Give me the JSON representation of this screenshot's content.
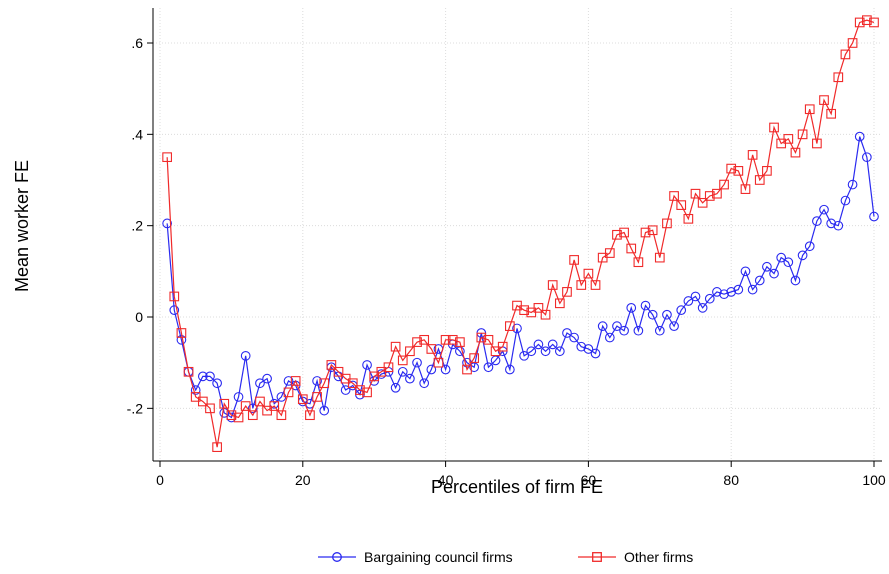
{
  "chart_data": {
    "type": "line",
    "xlabel": "Percentiles of firm FE",
    "ylabel": "Mean worker FE",
    "xlim": [
      0,
      100
    ],
    "ylim": [
      -0.3,
      0.66
    ],
    "xticks": [
      0,
      20,
      40,
      60,
      80,
      100
    ],
    "xtick_labels": [
      "0",
      "20",
      "40",
      "60",
      "80",
      "100"
    ],
    "yticks": [
      -0.2,
      0,
      0.2,
      0.4,
      0.6
    ],
    "ytick_labels": [
      "-.2",
      "0",
      ".2",
      ".4",
      ".6"
    ],
    "grid": true,
    "legend_position": "bottom",
    "x": [
      1,
      2,
      3,
      4,
      5,
      6,
      7,
      8,
      9,
      10,
      11,
      12,
      13,
      14,
      15,
      16,
      17,
      18,
      19,
      20,
      21,
      22,
      23,
      24,
      25,
      26,
      27,
      28,
      29,
      30,
      31,
      32,
      33,
      34,
      35,
      36,
      37,
      38,
      39,
      40,
      41,
      42,
      43,
      44,
      45,
      46,
      47,
      48,
      49,
      50,
      51,
      52,
      53,
      54,
      55,
      56,
      57,
      58,
      59,
      60,
      61,
      62,
      63,
      64,
      65,
      66,
      67,
      68,
      69,
      70,
      71,
      72,
      73,
      74,
      75,
      76,
      77,
      78,
      79,
      80,
      81,
      82,
      83,
      84,
      85,
      86,
      87,
      88,
      89,
      90,
      91,
      92,
      93,
      94,
      95,
      96,
      97,
      98,
      99,
      100
    ],
    "series": [
      {
        "name": "Bargaining council firms",
        "color": "#2a2af0",
        "marker": "circle",
        "values": [
          0.205,
          0.015,
          -0.05,
          -0.12,
          -0.16,
          -0.13,
          -0.13,
          -0.145,
          -0.21,
          -0.22,
          -0.175,
          -0.085,
          -0.2,
          -0.145,
          -0.135,
          -0.19,
          -0.175,
          -0.14,
          -0.15,
          -0.185,
          -0.19,
          -0.14,
          -0.205,
          -0.11,
          -0.13,
          -0.16,
          -0.15,
          -0.17,
          -0.105,
          -0.14,
          -0.125,
          -0.12,
          -0.155,
          -0.12,
          -0.135,
          -0.1,
          -0.145,
          -0.115,
          -0.07,
          -0.115,
          -0.06,
          -0.075,
          -0.1,
          -0.11,
          -0.035,
          -0.11,
          -0.095,
          -0.075,
          -0.115,
          -0.025,
          -0.085,
          -0.075,
          -0.06,
          -0.075,
          -0.06,
          -0.075,
          -0.035,
          -0.045,
          -0.065,
          -0.07,
          -0.08,
          -0.02,
          -0.045,
          -0.02,
          -0.03,
          0.02,
          -0.03,
          0.025,
          0.005,
          -0.03,
          0.005,
          -0.02,
          0.015,
          0.035,
          0.045,
          0.02,
          0.04,
          0.055,
          0.05,
          0.055,
          0.06,
          0.1,
          0.06,
          0.08,
          0.11,
          0.095,
          0.13,
          0.12,
          0.08,
          0.135,
          0.155,
          0.21,
          0.235,
          0.205,
          0.2,
          0.255,
          0.29,
          0.395,
          0.35,
          0.22
        ]
      },
      {
        "name": "Other firms",
        "color": "#f02a2a",
        "marker": "square",
        "values": [
          0.35,
          0.045,
          -0.035,
          -0.12,
          -0.175,
          -0.185,
          -0.2,
          -0.285,
          -0.19,
          -0.215,
          -0.22,
          -0.195,
          -0.215,
          -0.185,
          -0.205,
          -0.195,
          -0.215,
          -0.165,
          -0.14,
          -0.18,
          -0.215,
          -0.175,
          -0.145,
          -0.105,
          -0.12,
          -0.135,
          -0.145,
          -0.16,
          -0.165,
          -0.13,
          -0.12,
          -0.11,
          -0.065,
          -0.095,
          -0.075,
          -0.055,
          -0.05,
          -0.07,
          -0.1,
          -0.05,
          -0.05,
          -0.055,
          -0.115,
          -0.09,
          -0.045,
          -0.05,
          -0.075,
          -0.065,
          -0.02,
          0.025,
          0.015,
          0.01,
          0.02,
          0.005,
          0.07,
          0.03,
          0.055,
          0.125,
          0.07,
          0.095,
          0.07,
          0.13,
          0.14,
          0.18,
          0.185,
          0.15,
          0.12,
          0.185,
          0.19,
          0.13,
          0.205,
          0.265,
          0.245,
          0.215,
          0.27,
          0.25,
          0.265,
          0.27,
          0.29,
          0.325,
          0.32,
          0.28,
          0.355,
          0.3,
          0.32,
          0.415,
          0.38,
          0.39,
          0.36,
          0.4,
          0.455,
          0.38,
          0.475,
          0.445,
          0.525,
          0.575,
          0.6,
          0.645,
          0.65,
          0.645
        ]
      }
    ]
  }
}
